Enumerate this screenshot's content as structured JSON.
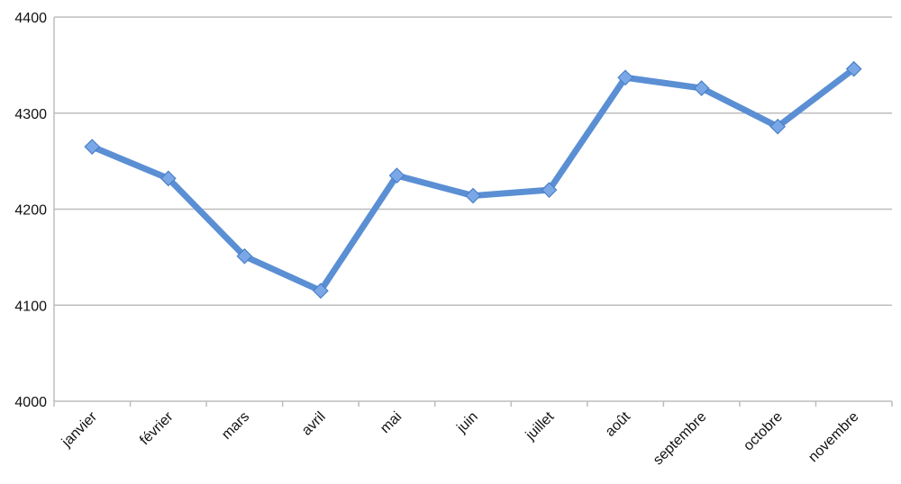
{
  "chart_data": {
    "type": "line",
    "title": "",
    "xlabel": "",
    "ylabel": "",
    "categories": [
      "janvier",
      "février",
      "mars",
      "avril",
      "mai",
      "juin",
      "juillet",
      "août",
      "septembre",
      "octobre",
      "novembre"
    ],
    "series": [
      {
        "values": [
          4265,
          4232,
          4151,
          4115,
          4235,
          4214,
          4220,
          4337,
          4326,
          4286,
          4346
        ],
        "color": "#5b8fd4",
        "marker": "diamond"
      }
    ],
    "ylim": [
      4000,
      4400
    ],
    "yticks": [
      "4000",
      "4100",
      "4200",
      "4300",
      "4400"
    ],
    "grid": true,
    "legend": "none"
  }
}
